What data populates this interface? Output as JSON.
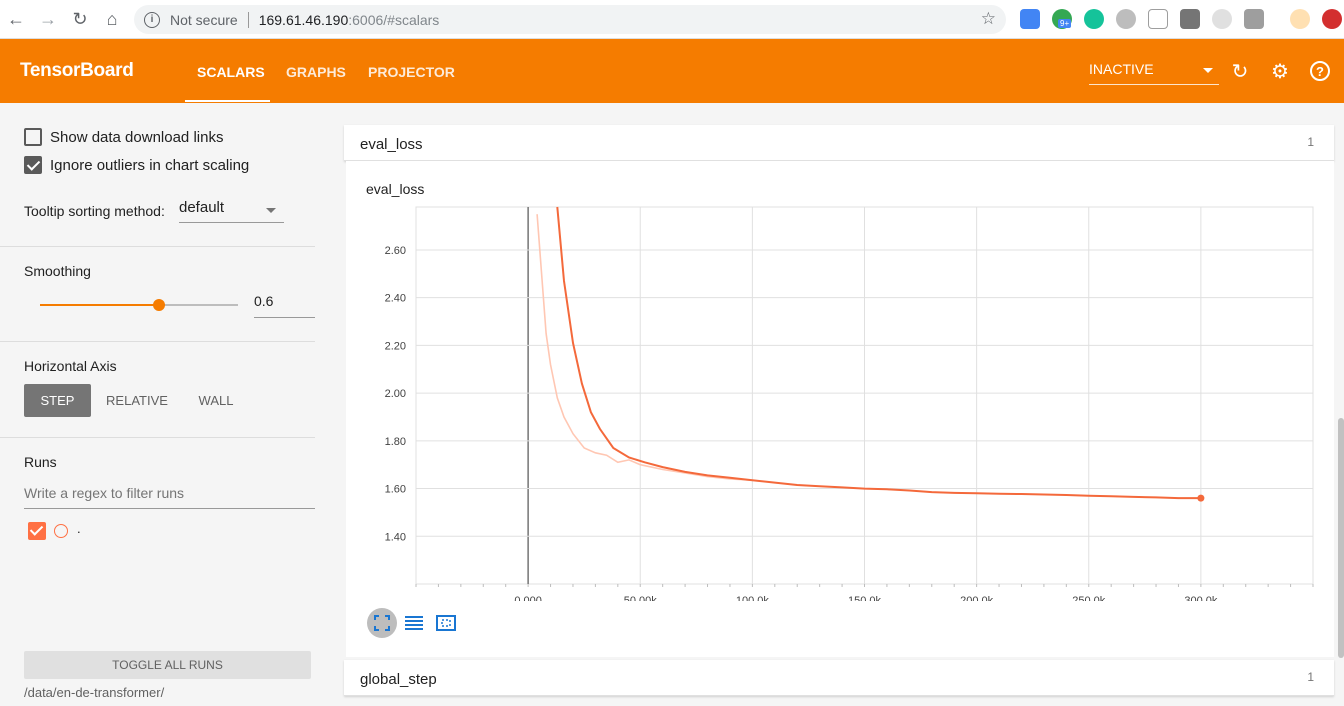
{
  "browser": {
    "security_label": "Not secure",
    "url_host": "169.61.46.190",
    "url_rest": ":6006/#scalars",
    "ext_badge": "9+"
  },
  "header": {
    "title": "TensorBoard",
    "tabs": [
      {
        "label": "SCALARS",
        "active": true
      },
      {
        "label": "GRAPHS",
        "active": false
      },
      {
        "label": "PROJECTOR",
        "active": false
      }
    ],
    "run_status": "INACTIVE",
    "brand_color": "#f57c00"
  },
  "sidebar": {
    "show_download_links": {
      "label": "Show data download links",
      "checked": false
    },
    "ignore_outliers": {
      "label": "Ignore outliers in chart scaling",
      "checked": true
    },
    "tooltip_sort_label": "Tooltip sorting method:",
    "tooltip_sort_value": "default",
    "smoothing_label": "Smoothing",
    "smoothing_value": "0.6",
    "smoothing_fraction": 0.6,
    "horizontal_axis_label": "Horizontal Axis",
    "axis_options": [
      {
        "label": "STEP",
        "active": true
      },
      {
        "label": "RELATIVE",
        "active": false
      },
      {
        "label": "WALL",
        "active": false
      }
    ],
    "runs_label": "Runs",
    "regex_placeholder": "Write a regex to filter runs",
    "runs": [
      {
        "name": ".",
        "checked": true,
        "color": "#ff7043"
      }
    ],
    "toggle_all_label": "TOGGLE ALL RUNS",
    "data_path": "/data/en-de-transformer/"
  },
  "main": {
    "groups": [
      {
        "name": "eval_loss",
        "count": "1"
      },
      {
        "name": "global_step",
        "count": "1"
      }
    ],
    "chart_title": "eval_loss"
  },
  "chart_data": {
    "type": "line",
    "title": "eval_loss",
    "xlabel": "",
    "ylabel": "",
    "x_ticks": [
      "0.000",
      "50.00k",
      "100.0k",
      "150.0k",
      "200.0k",
      "250.0k",
      "300.0k"
    ],
    "y_ticks": [
      "1.40",
      "1.60",
      "1.80",
      "2.00",
      "2.20",
      "2.40",
      "2.60"
    ],
    "xlim": [
      -50000,
      350000
    ],
    "ylim": [
      1.2,
      2.78
    ],
    "grid": true,
    "series": [
      {
        "name": ".",
        "smoothed": true,
        "color": "#f4693b",
        "x": [
          13000,
          16000,
          20000,
          24000,
          28000,
          32000,
          38000,
          45000,
          52000,
          60000,
          70000,
          80000,
          90000,
          100000,
          110000,
          120000,
          130000,
          140000,
          150000,
          160000,
          170000,
          180000,
          190000,
          200000,
          210000,
          220000,
          230000,
          240000,
          250000,
          260000,
          270000,
          280000,
          290000,
          300000
        ],
        "y": [
          2.78,
          2.47,
          2.21,
          2.04,
          1.92,
          1.85,
          1.77,
          1.73,
          1.71,
          1.69,
          1.67,
          1.655,
          1.645,
          1.635,
          1.625,
          1.615,
          1.61,
          1.605,
          1.6,
          1.597,
          1.592,
          1.585,
          1.582,
          1.58,
          1.578,
          1.577,
          1.575,
          1.573,
          1.57,
          1.568,
          1.565,
          1.563,
          1.56,
          1.56
        ]
      },
      {
        "name": ". (raw)",
        "smoothed": false,
        "color": "#ffc7b3",
        "x": [
          4000,
          6000,
          8000,
          10000,
          13000,
          16000,
          20000,
          25000,
          30000,
          35000,
          40000,
          45000,
          50000,
          60000,
          70000,
          80000,
          90000,
          100000
        ],
        "y": [
          2.75,
          2.5,
          2.25,
          2.12,
          1.98,
          1.9,
          1.83,
          1.77,
          1.75,
          1.74,
          1.71,
          1.72,
          1.7,
          1.68,
          1.665,
          1.65,
          1.64,
          1.635
        ]
      }
    ]
  }
}
